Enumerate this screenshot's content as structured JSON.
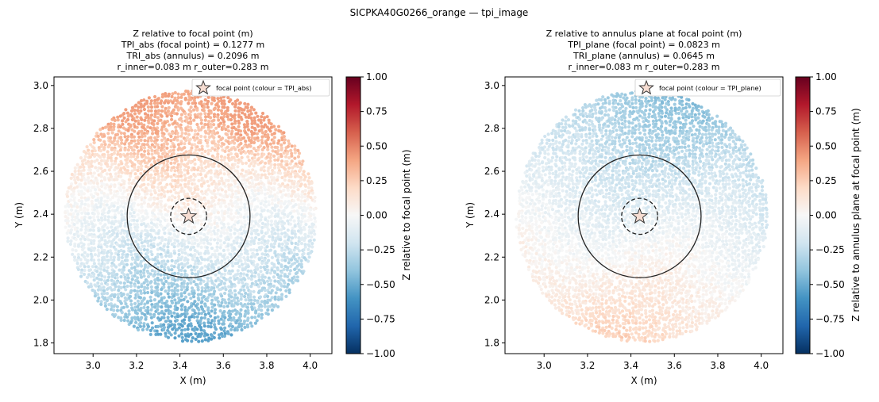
{
  "figure_title": "SICPKA40G0266_orange — tpi_image",
  "colormap": {
    "name": "RdBu_r",
    "stops": [
      "#053061",
      "#2166ac",
      "#4393c3",
      "#92c5de",
      "#d1e5f0",
      "#f7f7f7",
      "#fddbc7",
      "#f4a582",
      "#d6604d",
      "#b2182b",
      "#67001f"
    ]
  },
  "chart_data": [
    {
      "type": "scatter",
      "title_lines": [
        "Z relative to focal point (m)",
        "TPI_abs (focal point) = 0.1277 m",
        "TRI_abs (annulus) = 0.2096 m",
        "r_inner=0.083 m  r_outer=0.283 m"
      ],
      "xlabel": "X (m)",
      "ylabel": "Y (m)",
      "xlim": [
        2.82,
        4.1
      ],
      "ylim": [
        1.75,
        3.04
      ],
      "xticks": [
        3.0,
        3.2,
        3.4,
        3.6,
        3.8,
        4.0
      ],
      "xtick_labels": [
        "3.0",
        "3.2",
        "3.4",
        "3.6",
        "3.8",
        "4.0"
      ],
      "yticks": [
        1.8,
        2.0,
        2.2,
        2.4,
        2.6,
        2.8,
        3.0
      ],
      "ytick_labels": [
        "1.8",
        "2.0",
        "2.2",
        "2.4",
        "2.6",
        "2.8",
        "3.0"
      ],
      "cloud": {
        "center_x": 3.45,
        "center_y": 2.39,
        "radius": 0.58
      },
      "focal_point": {
        "x": 3.44,
        "y": 2.39
      },
      "r_inner": 0.083,
      "r_outer": 0.283,
      "field_model": "absolute",
      "legend_label": "focal point (colour = TPI_abs)",
      "legend_position": "upper right",
      "colorbar": {
        "label": "Z relative to focal point (m)",
        "range": [
          -1.0,
          1.0
        ],
        "ticks": [
          1.0,
          0.75,
          0.5,
          0.25,
          0.0,
          -0.25,
          -0.5,
          -0.75,
          -1.0
        ],
        "tick_labels": [
          "1.00",
          "0.75",
          "0.50",
          "0.25",
          "0.00",
          "−0.25",
          "−0.50",
          "−0.75",
          "−1.00"
        ]
      }
    },
    {
      "type": "scatter",
      "title_lines": [
        "Z relative to annulus plane at focal point (m)",
        "TPI_plane (focal point) = 0.0823 m",
        "TRI_plane (annulus) = 0.0645 m",
        "r_inner=0.083 m  r_outer=0.283 m"
      ],
      "xlabel": "X (m)",
      "ylabel": "Y (m)",
      "xlim": [
        2.82,
        4.1
      ],
      "ylim": [
        1.75,
        3.04
      ],
      "xticks": [
        3.0,
        3.2,
        3.4,
        3.6,
        3.8,
        4.0
      ],
      "xtick_labels": [
        "3.0",
        "3.2",
        "3.4",
        "3.6",
        "3.8",
        "4.0"
      ],
      "yticks": [
        1.8,
        2.0,
        2.2,
        2.4,
        2.6,
        2.8,
        3.0
      ],
      "ytick_labels": [
        "1.8",
        "2.0",
        "2.2",
        "2.4",
        "2.6",
        "2.8",
        "3.0"
      ],
      "cloud": {
        "center_x": 3.45,
        "center_y": 2.39,
        "radius": 0.58
      },
      "focal_point": {
        "x": 3.44,
        "y": 2.39
      },
      "r_inner": 0.083,
      "r_outer": 0.283,
      "field_model": "plane",
      "legend_label": "focal point (colour = TPI_plane)",
      "legend_position": "upper right",
      "colorbar": {
        "label": "Z relative to annulus plane at focal point (m)",
        "range": [
          -1.0,
          1.0
        ],
        "ticks": [
          1.0,
          0.75,
          0.5,
          0.25,
          0.0,
          -0.25,
          -0.5,
          -0.75,
          -1.0
        ],
        "tick_labels": [
          "1.00",
          "0.75",
          "0.50",
          "0.25",
          "0.00",
          "−0.25",
          "−0.50",
          "−0.75",
          "−1.00"
        ]
      }
    }
  ]
}
